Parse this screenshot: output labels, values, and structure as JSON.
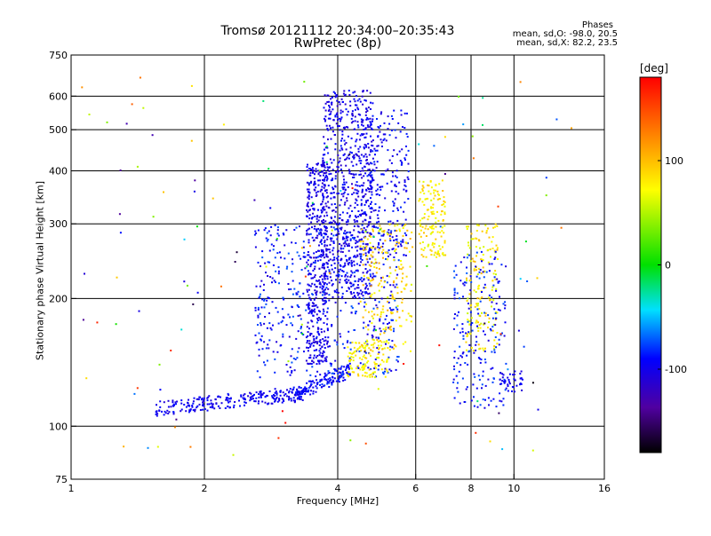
{
  "header": {
    "title": "Tromsø 20121112 20:34:00–20:35:43",
    "subtitle": "RwPretec (8p)",
    "stats_heading": "Phases",
    "stats_o": "mean, sd,O: -98.0, 20.5",
    "stats_x": "mean, sd,X: 82.2, 23.5"
  },
  "colorbar": {
    "unit_label": "[deg]",
    "tick_labels": [
      "100",
      "0",
      "-100"
    ],
    "tick_values": [
      100,
      0,
      -100
    ],
    "range": [
      -180,
      180
    ],
    "colormap": "rainbow"
  },
  "chart_data": {
    "type": "scatter",
    "xlabel": "Frequency [MHz]",
    "ylabel": "Stationary phase Virtual Height [km]",
    "xscale": "log",
    "yscale": "log",
    "xlim": [
      1,
      16
    ],
    "ylim": [
      75,
      750
    ],
    "xticks": [
      1,
      2,
      4,
      6,
      8,
      10,
      16
    ],
    "xtick_labels": [
      "1",
      "2",
      "4",
      "6",
      "8",
      "10",
      "16"
    ],
    "xgrid": [
      2,
      4,
      6,
      8,
      10
    ],
    "yticks": [
      75,
      100,
      200,
      300,
      400,
      500,
      600,
      750
    ],
    "ytick_labels": [
      "75",
      "100",
      "200",
      "300",
      "400",
      "500",
      "600",
      "750"
    ],
    "ygrid": [
      100,
      200,
      300,
      400,
      500,
      600
    ],
    "grid": true,
    "color_by": "phase (deg)",
    "point_groups": [
      {
        "desc": "O-mode F-trace low",
        "freq": [
          1.55,
          3.4
        ],
        "height": [
          108,
          122
        ],
        "phase": [
          -110,
          -85
        ],
        "count": 260,
        "shape": "ramp"
      },
      {
        "desc": "O-mode F-trace bend",
        "freq": [
          3.2,
          4.3
        ],
        "height": [
          115,
          140
        ],
        "phase": [
          -105,
          -80
        ],
        "count": 140,
        "shape": "ramp"
      },
      {
        "desc": "O-mode F-trace rise",
        "freq": [
          3.4,
          3.8
        ],
        "height": [
          140,
          420
        ],
        "phase": [
          -115,
          -90
        ],
        "count": 420,
        "shape": "fill"
      },
      {
        "desc": "O-mode upper cluster",
        "freq": [
          3.7,
          4.8
        ],
        "height": [
          200,
          620
        ],
        "phase": [
          -115,
          -85
        ],
        "count": 700,
        "shape": "fill"
      },
      {
        "desc": "O-mode mid scatter",
        "freq": [
          2.6,
          5.5
        ],
        "height": [
          130,
          300
        ],
        "phase": [
          -110,
          -70
        ],
        "count": 500,
        "shape": "fill"
      },
      {
        "desc": "O-mode high scatter",
        "freq": [
          4.5,
          5.8
        ],
        "height": [
          250,
          560
        ],
        "phase": [
          -110,
          -80
        ],
        "count": 260,
        "shape": "fill"
      },
      {
        "desc": "X-mode lower",
        "freq": [
          4.2,
          5.2
        ],
        "height": [
          130,
          160
        ],
        "phase": [
          60,
          95
        ],
        "count": 120,
        "shape": "fill"
      },
      {
        "desc": "X-mode mid",
        "freq": [
          4.5,
          5.9
        ],
        "height": [
          150,
          300
        ],
        "phase": [
          60,
          110
        ],
        "count": 200,
        "shape": "fill"
      },
      {
        "desc": "X-mode upper",
        "freq": [
          6.1,
          7.0
        ],
        "height": [
          250,
          380
        ],
        "phase": [
          60,
          100
        ],
        "count": 140,
        "shape": "fill"
      },
      {
        "desc": "X-mode far",
        "freq": [
          7.8,
          9.2
        ],
        "height": [
          150,
          300
        ],
        "phase": [
          55,
          105
        ],
        "count": 160,
        "shape": "fill"
      },
      {
        "desc": "O-mode far",
        "freq": [
          7.3,
          9.6
        ],
        "height": [
          110,
          260
        ],
        "phase": [
          -110,
          -70
        ],
        "count": 200,
        "shape": "fill"
      },
      {
        "desc": "tail near 10 MHz",
        "freq": [
          9.3,
          10.5
        ],
        "height": [
          120,
          135
        ],
        "phase": [
          -110,
          -90
        ],
        "count": 40,
        "shape": "fill"
      },
      {
        "desc": "background noise",
        "freq": [
          1.05,
          13.5
        ],
        "height": [
          85,
          680
        ],
        "phase": [
          -180,
          180
        ],
        "count": 130,
        "shape": "fill"
      }
    ]
  }
}
